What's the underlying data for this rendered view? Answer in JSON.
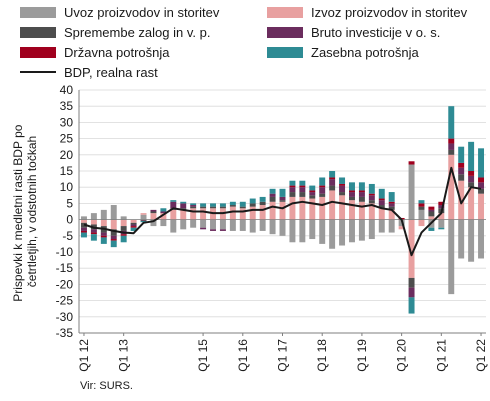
{
  "chart_data": {
    "type": "bar",
    "subtype": "stacked bar with line overlay",
    "ylabel": "Prispevki k medletni rasti BDP po četrtletjih, v odstotnih točkah",
    "ylim": [
      -35,
      40
    ],
    "ytick_step": 5,
    "grid": true,
    "legend_position": "top",
    "source": "Vir: SURS.",
    "x_tick_labels": [
      "Q1 12",
      "Q1 13",
      "Q1 15",
      "Q1 16",
      "Q1 17",
      "Q1 18",
      "Q1 19",
      "Q1 20",
      "Q1 21",
      "Q1 22"
    ],
    "x_tick_indices": [
      0,
      4,
      12,
      16,
      20,
      24,
      28,
      32,
      36,
      40
    ],
    "categories": [
      "Q1 12",
      "Q2 12",
      "Q3 12",
      "Q4 12",
      "Q1 13",
      "Q2 13",
      "Q3 13",
      "Q4 13",
      "Q1 14",
      "Q2 14",
      "Q3 14",
      "Q4 14",
      "Q1 15",
      "Q2 15",
      "Q3 15",
      "Q4 15",
      "Q1 16",
      "Q2 16",
      "Q3 16",
      "Q4 16",
      "Q1 17",
      "Q2 17",
      "Q3 17",
      "Q4 17",
      "Q1 18",
      "Q2 18",
      "Q3 18",
      "Q4 18",
      "Q1 19",
      "Q2 19",
      "Q3 19",
      "Q4 19",
      "Q1 20",
      "Q2 20",
      "Q3 20",
      "Q4 20",
      "Q1 21",
      "Q2 21",
      "Q3 21",
      "Q4 21",
      "Q1 22"
    ],
    "series": [
      {
        "name": "Uvoz proizvodov in storitev",
        "color": "#9b9b9b",
        "values": [
          1,
          2,
          3,
          4.5,
          1,
          0,
          1.5,
          -2,
          -2,
          -4,
          -3,
          -2.5,
          -2.5,
          -3,
          -3,
          -3.5,
          -3.5,
          -4,
          -3.5,
          -4.5,
          -5,
          -7,
          -7,
          -6,
          -7.5,
          -9,
          -8,
          -7,
          -6.5,
          -6,
          -4,
          -4,
          -2,
          17,
          3,
          -2.5,
          -2.5,
          -23,
          -12,
          -13,
          -12
        ]
      },
      {
        "name": "Izvoz proizvodov in storitev",
        "color": "#e8a0a0",
        "values": [
          -1,
          -1.5,
          -2,
          -3,
          -2,
          -1,
          0.5,
          2,
          2,
          3,
          3,
          3.5,
          3.5,
          3.5,
          3.5,
          4,
          3.5,
          4,
          4.5,
          5.5,
          5.5,
          7,
          7,
          6.5,
          7,
          9,
          7.5,
          6,
          5.5,
          5,
          3.5,
          3,
          -1,
          -18,
          -2,
          1,
          2,
          20,
          12,
          10,
          8
        ]
      },
      {
        "name": "Spremembe zalog in v. p.",
        "color": "#4d4d4d",
        "values": [
          -1.5,
          -1.5,
          -2,
          -2,
          -1.5,
          -0.5,
          0,
          0.5,
          0,
          0.5,
          0.5,
          0.5,
          0.5,
          0.5,
          0.5,
          0.5,
          0.5,
          1,
          1,
          1.5,
          0.5,
          1.5,
          1.5,
          1,
          1,
          1.5,
          1,
          1,
          1.5,
          1,
          1,
          1,
          0,
          -3,
          1,
          1.5,
          1.5,
          1.5,
          2,
          1.5,
          1.5
        ]
      },
      {
        "name": "Bruto investicije v o. s.",
        "color": "#6b2d5e",
        "values": [
          -1,
          -1,
          -1,
          -1,
          -1,
          -0.5,
          0,
          0.5,
          0.5,
          2,
          1.5,
          0.5,
          -0.5,
          -0.5,
          -0.5,
          0,
          0,
          0,
          0,
          1,
          1,
          1.5,
          1.5,
          1,
          2,
          2,
          2,
          1.5,
          1.5,
          1.5,
          1.5,
          1,
          0,
          -3,
          0,
          0.5,
          1,
          2,
          2,
          2,
          2
        ]
      },
      {
        "name": "Državna potrošnja",
        "color": "#a0001e",
        "values": [
          -0.5,
          -0.5,
          -0.5,
          -0.5,
          -0.5,
          -0.5,
          -0.3,
          0,
          0,
          0,
          0,
          0,
          0,
          0,
          0,
          0,
          0,
          0,
          0,
          0,
          0,
          0.5,
          0.5,
          0.5,
          0.5,
          0.5,
          0.5,
          0.5,
          0.5,
          0.5,
          0.5,
          0.5,
          0.5,
          1,
          1,
          1,
          1,
          1.5,
          1.5,
          1.5,
          1.5
        ]
      },
      {
        "name": "Zasebna potrošnja",
        "color": "#2e8b94",
        "values": [
          -1.5,
          -2,
          -2,
          -2,
          -2,
          -1,
          -0.5,
          0,
          1,
          0.5,
          0.5,
          0.5,
          1,
          1,
          1,
          1,
          1.5,
          1.5,
          1.5,
          1.5,
          2.5,
          1.5,
          1.5,
          1.5,
          2.5,
          2,
          2,
          2.5,
          2.5,
          3,
          3,
          3,
          0,
          -5,
          1,
          -1,
          -0.5,
          10,
          5,
          9,
          9
        ]
      },
      {
        "name": "BDP, realna rast",
        "color": "#1a1a1a",
        "kind": "line",
        "values": [
          -1.5,
          -2.5,
          -2.8,
          -3.5,
          -4,
          -4.2,
          -1,
          -0.5,
          1.5,
          3.5,
          3,
          2.5,
          2.5,
          2,
          2,
          2.5,
          2.5,
          3,
          3,
          4,
          3.5,
          5,
          5.5,
          5,
          4.5,
          5.5,
          5,
          4.5,
          4,
          4.5,
          3.5,
          3,
          0,
          -11,
          -4,
          -1,
          2,
          16,
          5,
          10,
          9.5
        ]
      }
    ]
  }
}
